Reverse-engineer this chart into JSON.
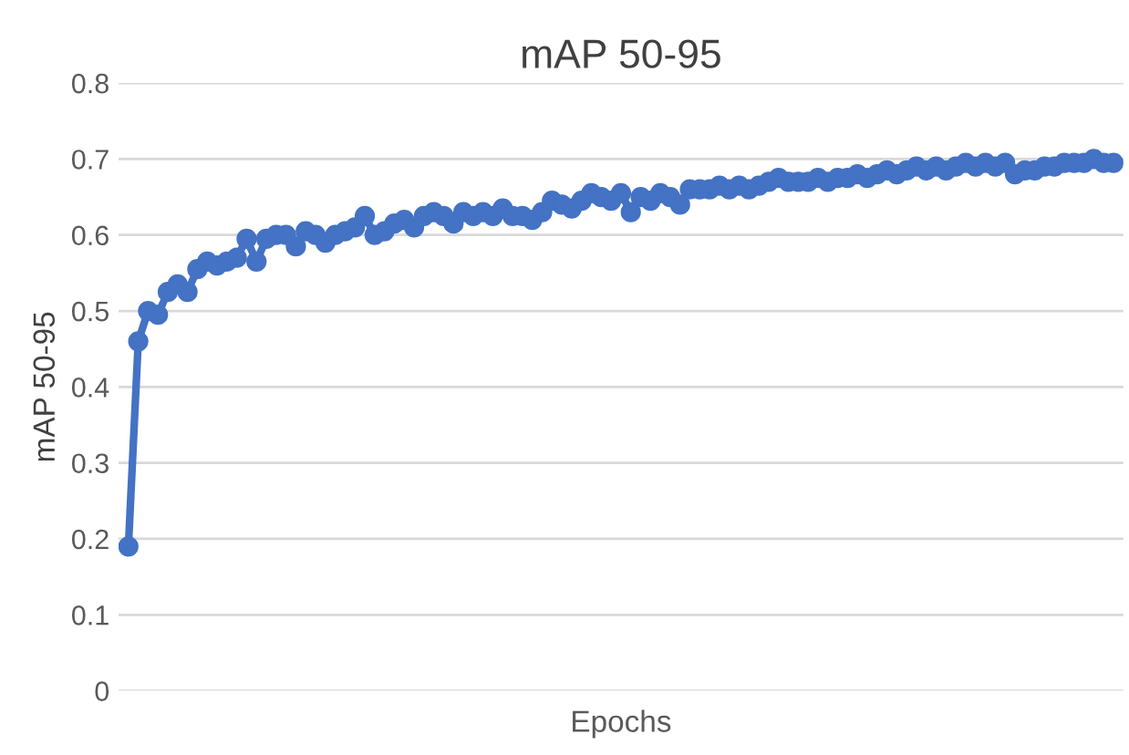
{
  "chart_data": {
    "type": "line",
    "title": "mAP 50-95",
    "xlabel": "Epochs",
    "ylabel": "mAP 50-95",
    "categories": [
      null,
      null,
      null,
      null,
      null,
      null,
      null,
      null,
      null,
      null,
      null,
      null,
      null,
      null,
      null,
      null,
      null,
      null,
      null,
      null,
      null,
      null,
      null,
      null,
      null,
      null,
      null,
      null,
      null,
      null,
      null,
      null,
      null,
      null,
      null,
      null,
      null,
      null,
      null,
      null,
      null,
      null,
      null,
      null,
      null,
      null,
      null,
      null,
      null,
      null,
      null,
      null,
      null,
      null,
      null,
      null,
      null,
      null,
      null,
      null,
      null,
      null,
      null,
      null,
      null,
      null,
      null,
      null,
      null,
      null,
      null,
      null,
      null,
      null,
      null,
      null,
      null,
      null,
      null,
      null,
      null,
      null,
      null,
      null,
      null,
      null,
      null,
      null,
      null,
      null,
      null,
      null,
      null,
      null,
      null,
      null,
      null,
      null,
      null,
      null,
      null
    ],
    "series": [
      {
        "color": "#4472c4",
        "values": [
          0.19,
          0.46,
          0.5,
          0.495,
          0.525,
          0.535,
          0.525,
          0.555,
          0.565,
          0.56,
          0.565,
          0.57,
          0.595,
          0.565,
          0.595,
          0.6,
          0.6,
          0.585,
          0.605,
          0.6,
          0.59,
          0.6,
          0.605,
          0.61,
          0.625,
          0.6,
          0.605,
          0.615,
          0.62,
          0.61,
          0.625,
          0.63,
          0.625,
          0.615,
          0.63,
          0.625,
          0.63,
          0.625,
          0.635,
          0.625,
          0.625,
          0.62,
          0.63,
          0.645,
          0.64,
          0.635,
          0.645,
          0.655,
          0.65,
          0.645,
          0.655,
          0.63,
          0.65,
          0.645,
          0.655,
          0.65,
          0.64,
          0.66,
          0.66,
          0.66,
          0.665,
          0.66,
          0.665,
          0.66,
          0.665,
          0.67,
          0.675,
          0.67,
          0.67,
          0.67,
          0.675,
          0.67,
          0.675,
          0.675,
          0.68,
          0.675,
          0.68,
          0.685,
          0.68,
          0.685,
          0.69,
          0.685,
          0.69,
          0.685,
          0.69,
          0.695,
          0.69,
          0.695,
          0.69,
          0.695,
          0.68,
          0.685,
          0.685,
          0.69,
          0.69,
          0.695,
          0.695,
          0.695,
          0.7,
          0.695,
          0.695
        ]
      }
    ],
    "ylim": [
      0,
      0.8
    ],
    "yticks": [
      0,
      0.1,
      0.2,
      0.3,
      0.4,
      0.5,
      0.6,
      0.7,
      0.8
    ],
    "grid": "y",
    "legend": false,
    "marker": "circle",
    "line_style": "solid"
  }
}
